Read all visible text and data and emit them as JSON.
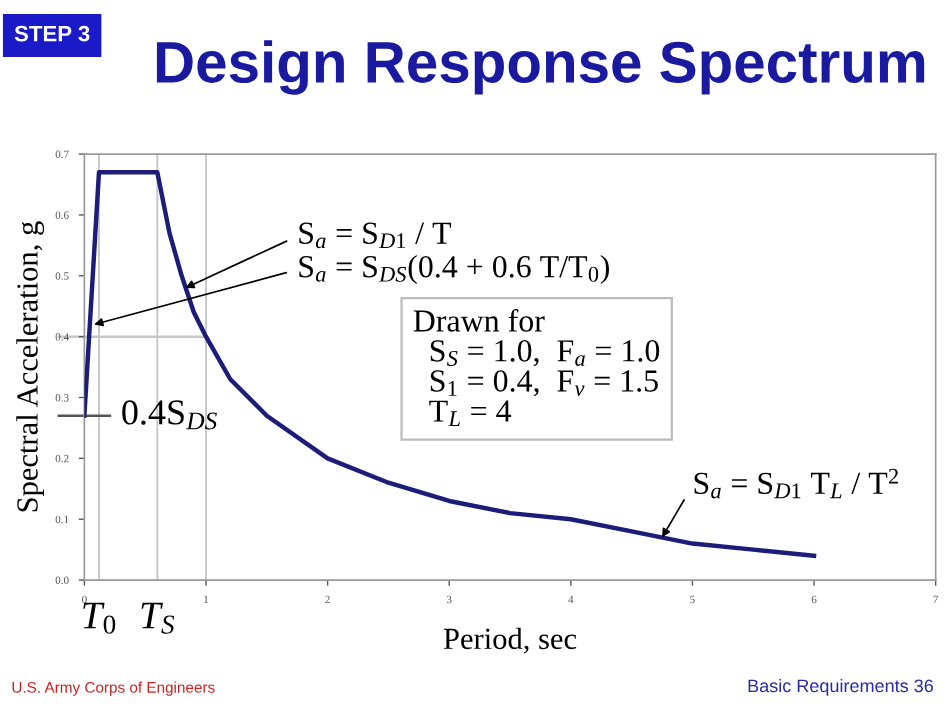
{
  "chart_data": {
    "type": "line",
    "title": "Design Response Spectrum",
    "xlabel": "Period, sec",
    "ylabel": "Spectral Acceleration, g",
    "x": [
      0,
      0.12,
      0.6,
      0.7,
      0.8,
      0.9,
      1,
      1.2,
      1.5,
      2,
      2.5,
      3,
      3.5,
      4,
      4.5,
      5,
      5.5,
      6
    ],
    "series": [
      {
        "color": "#1c1c7a",
        "values": [
          0.27,
          0.67,
          0.67,
          0.57,
          0.5,
          0.44,
          0.4,
          0.33,
          0.27,
          0.2,
          0.16,
          0.13,
          0.11,
          0.1,
          0.08,
          0.06,
          0.05,
          0.04
        ]
      }
    ],
    "xlim": [
      0,
      7
    ],
    "ylim": [
      0,
      0.7
    ],
    "xticks": [
      0,
      1,
      2,
      3,
      4,
      5,
      6,
      7
    ],
    "yticks": [
      {
        "value": 0,
        "label": "0.0"
      },
      0.1,
      0.2,
      0.3,
      0.4,
      0.5,
      0.6,
      0.7
    ],
    "grid": false,
    "marker": "none",
    "line_style": "solid",
    "ref_lines": [
      {
        "axis": "x",
        "value": 0.12,
        "label": "T$_{0}$",
        "color": "#c8c8c8"
      },
      {
        "axis": "x",
        "value": 0.6,
        "label": "T$_{S}$",
        "color": "#c8c8c8"
      },
      {
        "axis": "x",
        "value": 1,
        "color": "#c8c8c8"
      },
      {
        "axis": "y",
        "value": 0.4,
        "color": "#c8c8c8"
      },
      {
        "axis": "y",
        "value": 0.27,
        "label": "0.4S$_{DS}$",
        "color": "#555555"
      }
    ],
    "annotations": [
      {
        "text": "S$_{a}$ = S$_{D1}$ / T",
        "x": 0.83,
        "y": 0.48
      },
      {
        "text": "S$_{a}$ = S$_{DS}$(0.4 + 0.6 T/T$_{0}$)",
        "x": 0.08,
        "y": 0.42
      },
      {
        "text": "S$_{a}$ = S$_{D1}$ T$_{L}$ / T$^{2}$",
        "x": 4.75,
        "y": 0.07
      },
      "Drawn for\n  S$_{S}$ = 1.0,  F$_{a}$ = 1.0\n  S$_{1}$ = 0.4,  F$_{v}$ = 1.5\n  T$_{L}$ = 4",
      "STEP 3",
      "U.S. Army Corps of Engineers",
      "Basic Requirements 36"
    ]
  }
}
